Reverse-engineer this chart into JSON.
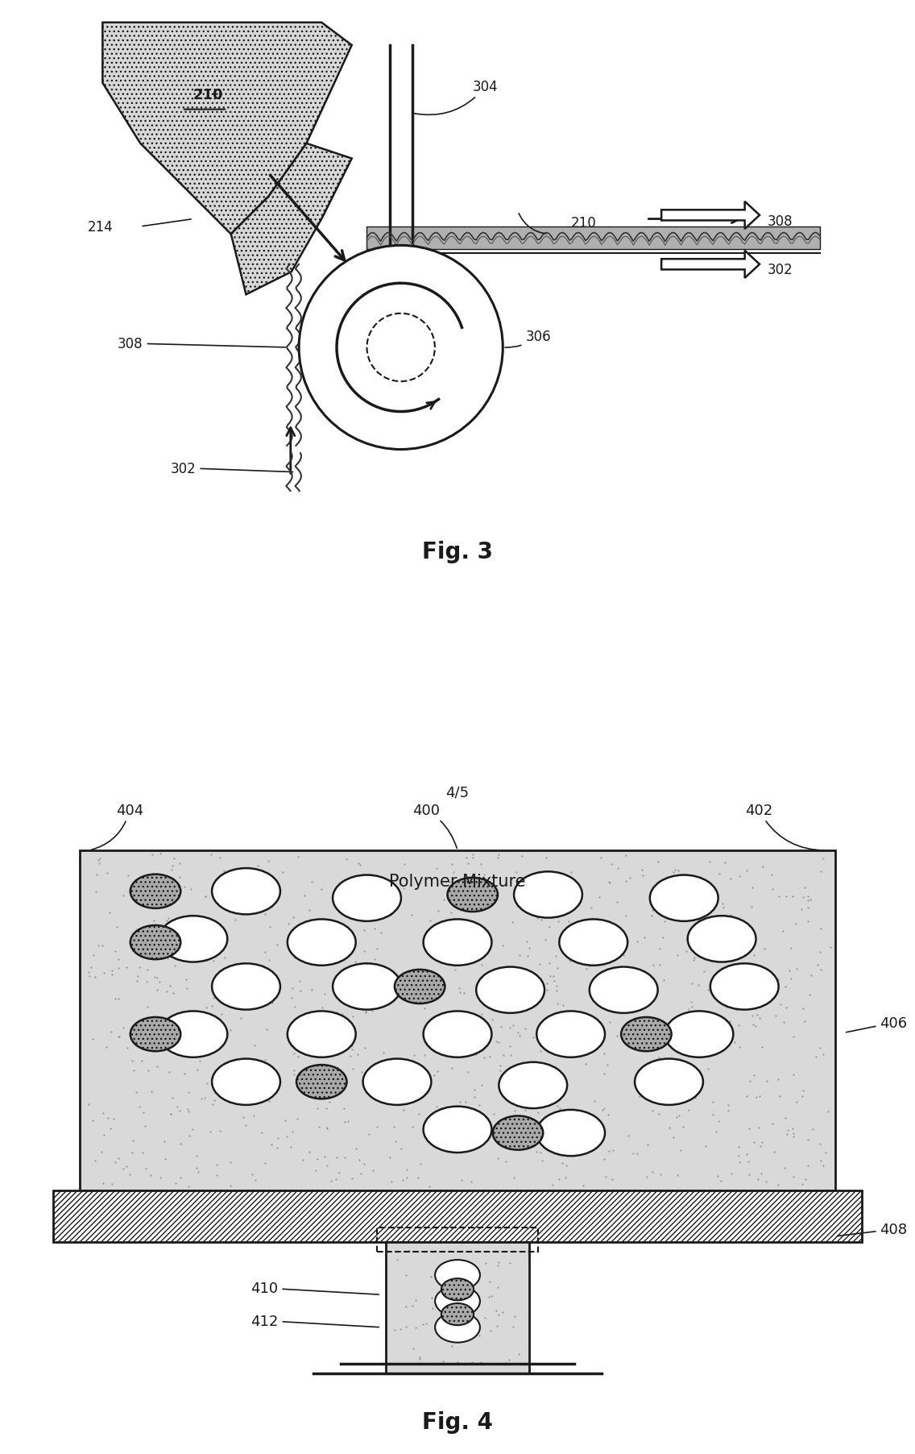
{
  "fig3": {
    "title": "Fig. 3",
    "labels": {
      "210_top": "210",
      "304": "304",
      "214": "214",
      "210_mid": "210",
      "306": "306",
      "308_left": "308",
      "302_bottom": "302",
      "308_right": "308",
      "302_right": "302"
    }
  },
  "fig4": {
    "title": "Fig. 4",
    "page_label": "4/5",
    "labels": {
      "404": "404",
      "400": "400",
      "402": "402",
      "406": "406",
      "408": "408",
      "410": "410",
      "412": "412"
    },
    "polymer_mixture_label": "Polymer Mixture",
    "white_circles": [
      [
        0.22,
        0.88
      ],
      [
        0.38,
        0.86
      ],
      [
        0.62,
        0.87
      ],
      [
        0.8,
        0.86
      ],
      [
        0.15,
        0.74
      ],
      [
        0.32,
        0.73
      ],
      [
        0.5,
        0.73
      ],
      [
        0.68,
        0.73
      ],
      [
        0.85,
        0.74
      ],
      [
        0.22,
        0.6
      ],
      [
        0.38,
        0.6
      ],
      [
        0.57,
        0.59
      ],
      [
        0.72,
        0.59
      ],
      [
        0.88,
        0.6
      ],
      [
        0.15,
        0.46
      ],
      [
        0.32,
        0.46
      ],
      [
        0.5,
        0.46
      ],
      [
        0.65,
        0.46
      ],
      [
        0.82,
        0.46
      ],
      [
        0.22,
        0.32
      ],
      [
        0.42,
        0.32
      ],
      [
        0.6,
        0.31
      ],
      [
        0.78,
        0.32
      ],
      [
        0.5,
        0.18
      ],
      [
        0.65,
        0.17
      ]
    ],
    "gray_circles": [
      [
        0.1,
        0.88
      ],
      [
        0.52,
        0.87
      ],
      [
        0.1,
        0.73
      ],
      [
        0.45,
        0.6
      ],
      [
        0.1,
        0.46
      ],
      [
        0.75,
        0.46
      ],
      [
        0.32,
        0.32
      ],
      [
        0.58,
        0.17
      ]
    ]
  },
  "bg_color": "#ffffff",
  "line_color": "#1a1a1a",
  "hatch_gray": "#888888",
  "dot_pattern_color": "#c8c8c8"
}
